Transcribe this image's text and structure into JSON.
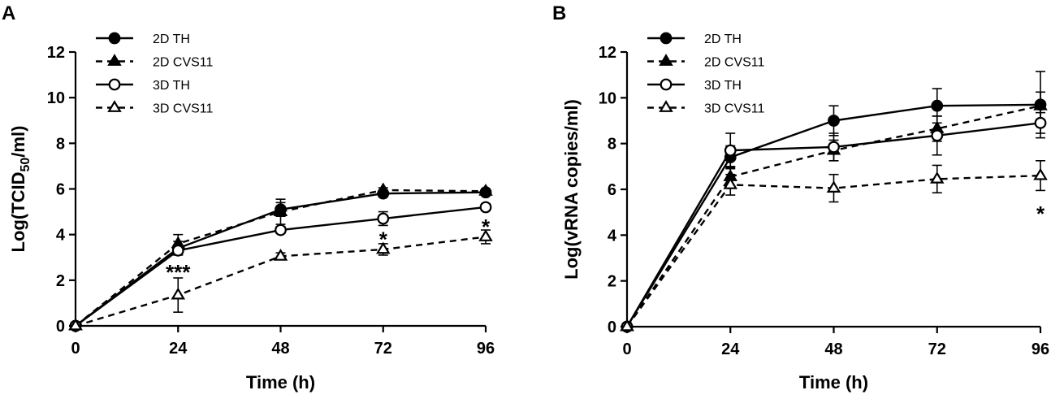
{
  "chart_data": [
    {
      "panel_label": "A",
      "type": "line",
      "xlabel": "Time (h)",
      "ylabel_main": "Log(TCID",
      "ylabel_sub": "50",
      "ylabel_tail": "/ml)",
      "xlim": [
        0,
        96
      ],
      "ylim": [
        0,
        12
      ],
      "xticks": [
        0,
        24,
        48,
        72,
        96
      ],
      "yticks": [
        0,
        2,
        4,
        6,
        8,
        10,
        12
      ],
      "x": [
        0,
        24,
        48,
        72,
        96
      ],
      "legend_position": "top-left",
      "series": [
        {
          "name": "2D TH",
          "marker": "filled-circle",
          "dash": "solid",
          "values": [
            0,
            3.4,
            5.1,
            5.8,
            5.85
          ],
          "err": [
            0,
            0.3,
            0.3,
            0.15,
            0.1
          ]
        },
        {
          "name": "2D CVS11",
          "marker": "filled-triangle",
          "dash": "dashed",
          "values": [
            0,
            3.6,
            5.0,
            5.95,
            5.9
          ],
          "err": [
            0,
            0.4,
            0.55,
            0.1,
            0.1
          ]
        },
        {
          "name": "3D TH",
          "marker": "open-circle",
          "dash": "solid",
          "values": [
            0,
            3.3,
            4.2,
            4.7,
            5.2
          ],
          "err": [
            0,
            0.15,
            0.15,
            0.3,
            0.15
          ]
        },
        {
          "name": "3D CVS11",
          "marker": "open-triangle",
          "dash": "dashed",
          "values": [
            0,
            1.35,
            3.05,
            3.35,
            3.9
          ],
          "err": [
            0,
            0.75,
            0.15,
            0.25,
            0.3
          ]
        }
      ],
      "annotations": [
        {
          "x": 24,
          "y": 2.45,
          "text": "***"
        },
        {
          "x": 72,
          "y": 3.9,
          "text": "*"
        },
        {
          "x": 96,
          "y": 4.45,
          "text": "*"
        }
      ]
    },
    {
      "panel_label": "B",
      "type": "line",
      "xlabel": "Time (h)",
      "ylabel_main": "Log(vRNA copies/ml)",
      "ylabel_sub": "",
      "ylabel_tail": "",
      "xlim": [
        0,
        96
      ],
      "ylim": [
        0,
        12
      ],
      "xticks": [
        0,
        24,
        48,
        72,
        96
      ],
      "yticks": [
        0,
        2,
        4,
        6,
        8,
        10,
        12
      ],
      "x": [
        0,
        24,
        48,
        72,
        96
      ],
      "legend_position": "top-left",
      "series": [
        {
          "name": "2D TH",
          "marker": "filled-circle",
          "dash": "solid",
          "values": [
            0,
            7.4,
            9.0,
            9.65,
            9.7
          ],
          "err": [
            0,
            0.5,
            0.65,
            0.75,
            1.45
          ]
        },
        {
          "name": "2D CVS11",
          "marker": "filled-triangle",
          "dash": "dashed",
          "values": [
            0,
            6.55,
            7.7,
            8.65,
            9.65
          ],
          "err": [
            0,
            0.45,
            0.45,
            0.55,
            0.6
          ]
        },
        {
          "name": "3D TH",
          "marker": "open-circle",
          "dash": "solid",
          "values": [
            0,
            7.7,
            7.85,
            8.35,
            8.9
          ],
          "err": [
            0,
            0.75,
            0.6,
            0.85,
            0.45
          ]
        },
        {
          "name": "3D CVS11",
          "marker": "open-triangle",
          "dash": "dashed",
          "values": [
            0,
            6.2,
            6.05,
            6.45,
            6.6
          ],
          "err": [
            0,
            0.45,
            0.6,
            0.6,
            0.65
          ]
        }
      ],
      "annotations": [
        {
          "x": 96,
          "y": 5.05,
          "text": "*"
        }
      ]
    }
  ]
}
